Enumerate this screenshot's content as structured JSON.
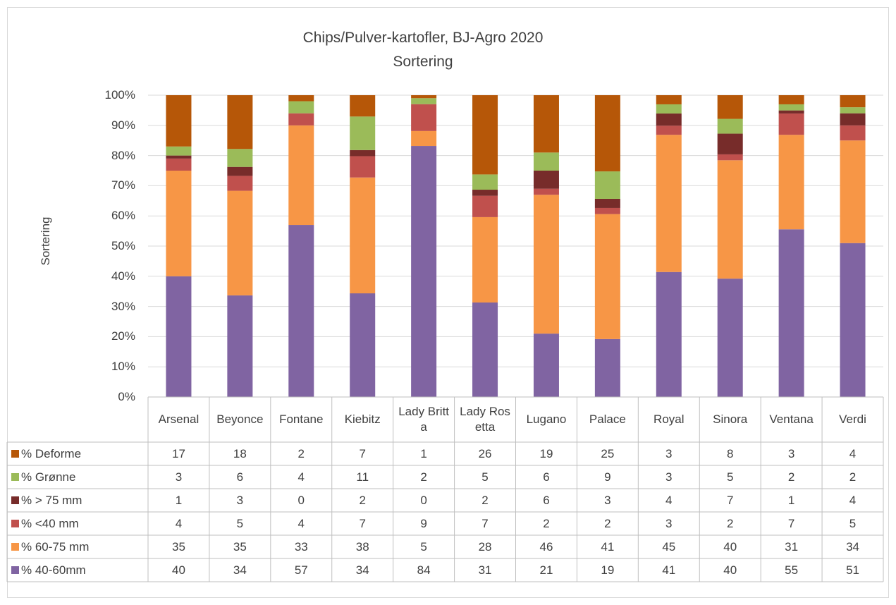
{
  "chart_data": {
    "type": "bar",
    "stacking": "percent",
    "title": "Chips/Pulver-kartofler, BJ-Agro 2020",
    "subtitle": "Sortering",
    "y_label": "Sortering",
    "categories": [
      "Arsenal",
      "Beyonce",
      "Fontane",
      "Kiebitz",
      "Lady Britta",
      "Lady Rosetta",
      "Lugano",
      "Palace",
      "Royal",
      "Sinora",
      "Ventana",
      "Verdi"
    ],
    "series": [
      {
        "name": "% 40-60mm",
        "color": "#8064a2",
        "values": [
          40,
          34,
          57,
          34,
          84,
          31,
          21,
          19,
          41,
          40,
          55,
          51
        ]
      },
      {
        "name": "% 60-75 mm",
        "color": "#f79646",
        "values": [
          35,
          35,
          33,
          38,
          5,
          28,
          46,
          41,
          45,
          40,
          31,
          34
        ]
      },
      {
        "name": "% <40 mm",
        "color": "#c0504d",
        "values": [
          4,
          5,
          4,
          7,
          9,
          7,
          2,
          2,
          3,
          2,
          7,
          5
        ]
      },
      {
        "name": "% > 75 mm",
        "color": "#772c2a",
        "values": [
          1,
          3,
          0,
          2,
          0,
          2,
          6,
          3,
          4,
          7,
          1,
          4
        ]
      },
      {
        "name": "% Grønne",
        "color": "#9bbb59",
        "values": [
          3,
          6,
          4,
          11,
          2,
          5,
          6,
          9,
          3,
          5,
          2,
          2
        ]
      },
      {
        "name": "% Deforme",
        "color": "#b65708",
        "values": [
          17,
          18,
          2,
          7,
          1,
          26,
          19,
          25,
          3,
          8,
          3,
          4
        ]
      }
    ],
    "ylim": [
      0,
      100
    ],
    "yticks": [
      {
        "value": 0,
        "label": "0%"
      },
      {
        "value": 10,
        "label": "10%"
      },
      {
        "value": 20,
        "label": "20%"
      },
      {
        "value": 30,
        "label": "30%"
      },
      {
        "value": 40,
        "label": "40%"
      },
      {
        "value": 50,
        "label": "50%"
      },
      {
        "value": 60,
        "label": "60%"
      },
      {
        "value": 70,
        "label": "70%"
      },
      {
        "value": 80,
        "label": "80%"
      },
      {
        "value": 90,
        "label": "90%"
      },
      {
        "value": 100,
        "label": "100%"
      }
    ],
    "grid": true,
    "data_table": true
  }
}
